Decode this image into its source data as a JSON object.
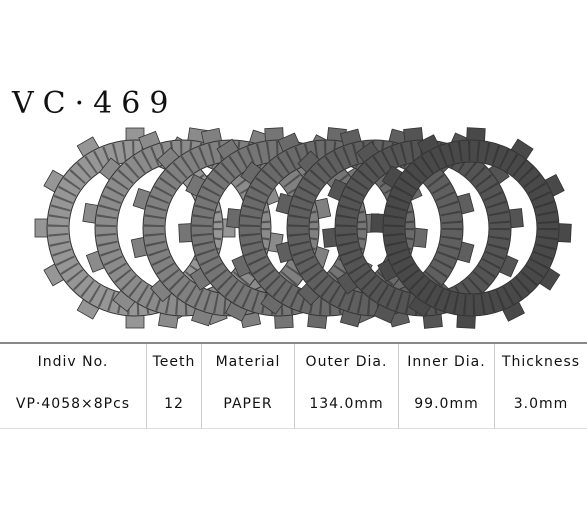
{
  "header": {
    "title": "VC·469"
  },
  "table": {
    "columns": [
      "Indiv No.",
      "Teeth",
      "Material",
      "Outer Dia.",
      "Inner Dia.",
      "Thickness"
    ],
    "rows": [
      [
        "VP·4058×8Pcs",
        "12",
        "PAPER",
        "134.0mm",
        "99.0mm",
        "3.0mm"
      ]
    ]
  }
}
